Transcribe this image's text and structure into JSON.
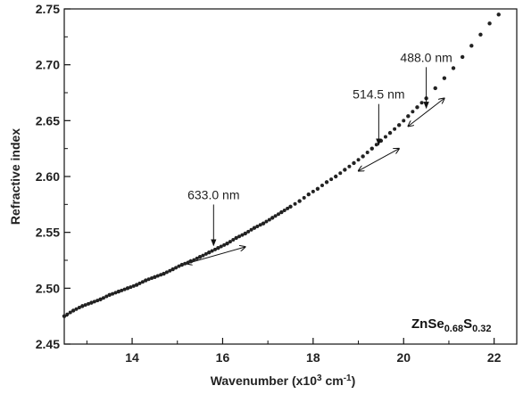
{
  "chart_data": {
    "type": "scatter",
    "xlabel": {
      "base": "Wavenumber (x10",
      "sup": "3",
      "mid": " cm",
      "sup2": "-1",
      "end": ")"
    },
    "ylabel": "Refractive index",
    "xlim": [
      12.5,
      22.5
    ],
    "ylim": [
      2.45,
      2.75
    ],
    "x_ticks": [
      14,
      16,
      18,
      20,
      22
    ],
    "x_tick_labels": [
      "14",
      "16",
      "18",
      "20",
      "22"
    ],
    "y_ticks": [
      2.45,
      2.5,
      2.55,
      2.6,
      2.65,
      2.7,
      2.75
    ],
    "y_tick_labels": [
      "2.45",
      "2.50",
      "2.55",
      "2.60",
      "2.65",
      "2.70",
      "2.75"
    ],
    "grid": false,
    "series": [
      {
        "marker": "dot",
        "color": "#222222",
        "x": [
          12.5,
          12.7,
          12.9,
          13.1,
          13.3,
          13.5,
          13.7,
          13.9,
          14.1,
          14.3,
          14.5,
          14.7,
          14.9,
          15.1,
          15.3,
          15.5,
          15.7,
          15.9,
          16.1,
          16.3,
          16.5,
          16.7,
          16.9,
          17.1,
          17.3,
          17.5,
          17.7,
          17.9,
          18.1,
          18.3,
          18.5,
          18.7,
          18.9,
          19.1,
          19.3,
          19.5,
          19.7,
          19.9,
          20.1,
          20.3,
          20.5,
          20.7,
          20.9,
          21.1,
          21.3,
          21.5,
          21.7,
          21.9,
          22.1
        ],
        "y": [
          2.475,
          2.48,
          2.484,
          2.487,
          2.49,
          2.494,
          2.497,
          2.5,
          2.503,
          2.507,
          2.51,
          2.513,
          2.517,
          2.521,
          2.524,
          2.528,
          2.532,
          2.536,
          2.54,
          2.545,
          2.549,
          2.554,
          2.558,
          2.563,
          2.568,
          2.573,
          2.578,
          2.584,
          2.589,
          2.595,
          2.6,
          2.606,
          2.612,
          2.618,
          2.625,
          2.632,
          2.639,
          2.646,
          2.654,
          2.662,
          2.67,
          2.679,
          2.688,
          2.697,
          2.707,
          2.717,
          2.727,
          2.737,
          2.745
        ]
      }
    ],
    "annotations": [
      {
        "text": "633.0 nm",
        "x": 15.8,
        "y": 2.535
      },
      {
        "text": "514.5 nm",
        "x": 19.45,
        "y": 2.625
      },
      {
        "text": "488.0 nm",
        "x": 20.5,
        "y": 2.658
      }
    ],
    "tangents": [
      {
        "x1": 15.2,
        "y1": 2.522,
        "x2": 16.5,
        "y2": 2.537
      },
      {
        "x1": 19.0,
        "y1": 2.605,
        "x2": 19.9,
        "y2": 2.625
      },
      {
        "x1": 20.1,
        "y1": 2.645,
        "x2": 20.9,
        "y2": 2.67
      }
    ],
    "sample_label": {
      "base1": "ZnSe",
      "sub1": "0.68",
      "base2": "S",
      "sub2": "0.32"
    }
  }
}
